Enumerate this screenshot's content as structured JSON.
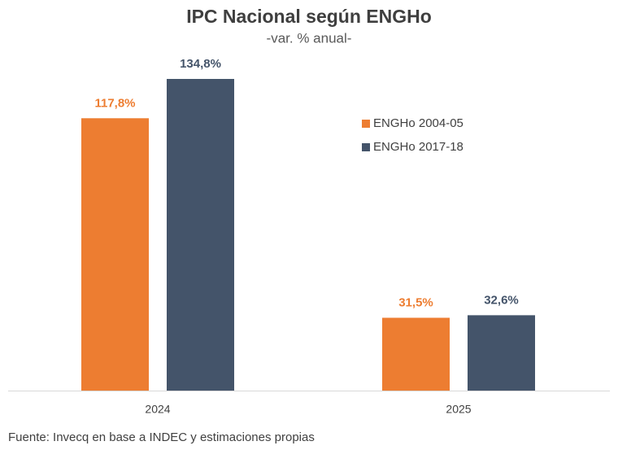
{
  "chart_data": {
    "type": "bar",
    "title": "IPC Nacional según ENGHo",
    "subtitle": "-var. % anual-",
    "categories": [
      "2024",
      "2025"
    ],
    "series": [
      {
        "name": "ENGHo 2004-05",
        "color": "#ED7D31",
        "values": [
          117.8,
          31.5
        ],
        "value_labels": [
          "117,8%",
          "31,5%"
        ]
      },
      {
        "name": "ENGHo 2017-18",
        "color": "#44546A",
        "values": [
          134.8,
          32.6
        ],
        "value_labels": [
          "134,8%",
          "32,6%"
        ]
      }
    ],
    "source": "Fuente: Invecq en base a INDEC y estimaciones propias"
  }
}
